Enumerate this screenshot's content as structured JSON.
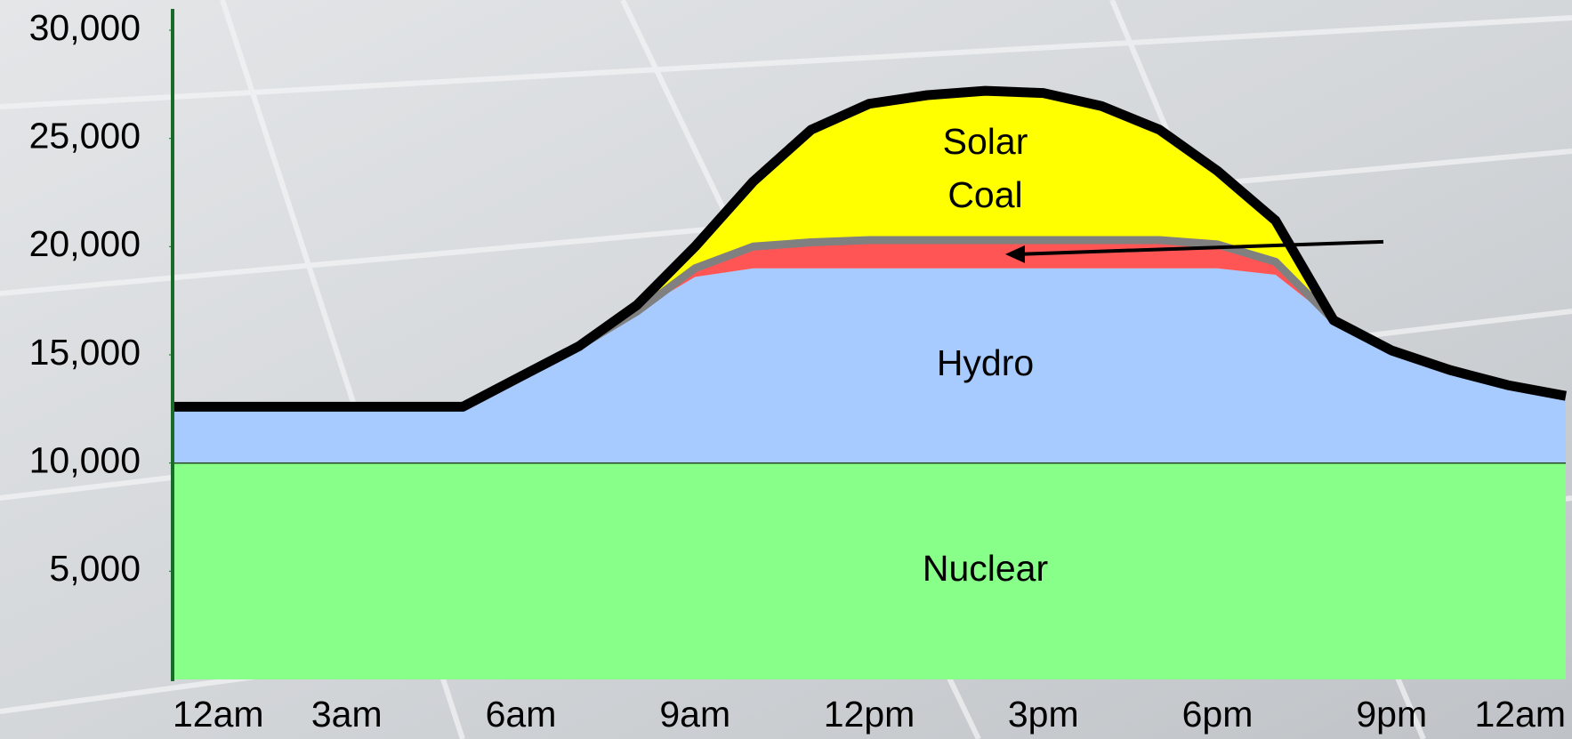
{
  "chart_data": {
    "type": "stacked-area",
    "categories": [
      "12am",
      null,
      null,
      "3am",
      null,
      null,
      "6am",
      null,
      null,
      "9am",
      null,
      null,
      "12pm",
      null,
      null,
      "3pm",
      null,
      null,
      "6pm",
      null,
      null,
      "9pm",
      null,
      null,
      "12am"
    ],
    "series": [
      {
        "name": "Nuclear",
        "color": "#88ff88",
        "values": [
          10000,
          10000,
          10000,
          10000,
          10000,
          10000,
          10000,
          10000,
          10000,
          10000,
          10000,
          10000,
          10000,
          10000,
          10000,
          10000,
          10000,
          10000,
          10000,
          10000,
          10000,
          10000,
          10000,
          10000,
          10000
        ]
      },
      {
        "name": "Hydro",
        "color": "#a8cbff",
        "values": [
          2600,
          2600,
          2600,
          2600,
          2600,
          2600,
          4000,
          5400,
          7000,
          8600,
          9000,
          9000,
          9000,
          9000,
          9000,
          9000,
          9000,
          9000,
          9000,
          8700,
          6600,
          5200,
          4300,
          3600,
          3100
        ]
      },
      {
        "name": "Coal",
        "color": "#ff5555",
        "values": [
          0,
          0,
          0,
          0,
          0,
          0,
          0,
          0,
          0,
          400,
          1000,
          1200,
          1300,
          1300,
          1300,
          1300,
          1300,
          1300,
          1100,
          600,
          0,
          0,
          0,
          0,
          0
        ]
      },
      {
        "name": "Solar",
        "color": "#ffff00",
        "values": [
          0,
          0,
          0,
          0,
          0,
          0,
          0,
          0,
          300,
          1000,
          3000,
          5200,
          6300,
          6700,
          6900,
          6800,
          6200,
          5100,
          3400,
          1900,
          0,
          0,
          0,
          0,
          0
        ]
      }
    ],
    "ylim": [
      0,
      30000
    ],
    "yticks": [
      {
        "value": 5000,
        "label": "5,000"
      },
      {
        "value": 10000,
        "label": "10,000"
      },
      {
        "value": 15000,
        "label": "15,000"
      },
      {
        "value": 20000,
        "label": "20,000"
      },
      {
        "value": 25000,
        "label": "25,000"
      },
      {
        "value": 30000,
        "label": "30,000"
      }
    ]
  }
}
